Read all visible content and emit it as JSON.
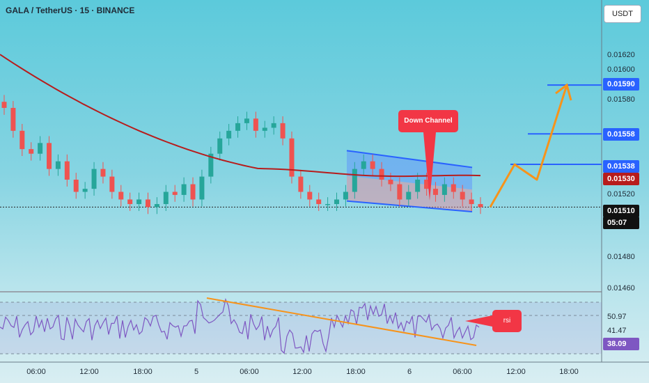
{
  "header": {
    "title": "GALA / TetherUS · 15 · BINANCE"
  },
  "price_axis": {
    "currency": "USDT",
    "ticks": [
      "0.01620",
      "0.01600",
      "0.01580",
      "0.01520",
      "0.01480",
      "0.01460"
    ],
    "tags": [
      {
        "label": "0.01590",
        "style": "blue"
      },
      {
        "label": "0.01558",
        "style": "blue"
      },
      {
        "label": "0.01538",
        "style": "blue"
      },
      {
        "label": "0.01530",
        "style": "red"
      },
      {
        "label": "0.01510",
        "style": "black"
      },
      {
        "label": "05:07",
        "style": "black"
      }
    ]
  },
  "rsi_axis": {
    "values": [
      "50.97",
      "41.47",
      "38.09"
    ]
  },
  "annotations": {
    "down_channel": "Down Channel",
    "rsi": "rsi"
  },
  "time_axis": [
    "06:00",
    "12:00",
    "18:00",
    "5",
    "06:00",
    "12:00",
    "18:00",
    "6",
    "06:00",
    "12:00",
    "18:00"
  ],
  "colors": {
    "up": "#26a69a",
    "down": "#ef5350",
    "ma": "#b71c1c",
    "channel": "#2962ff",
    "projection": "#f7931a",
    "rsi": "#7e57c2"
  },
  "chart_data": {
    "type": "candlestick",
    "symbol": "GALA / TetherUS",
    "interval": "15",
    "exchange": "BINANCE",
    "ylim": [
      0.01455,
      0.01632
    ],
    "close_series": [
      0.01575,
      0.0156,
      0.01548,
      0.01545,
      0.01552,
      0.01535,
      0.0154,
      0.01528,
      0.0152,
      0.01522,
      0.01535,
      0.0153,
      0.0152,
      0.01515,
      0.01512,
      0.01515,
      0.0151,
      0.01512,
      0.0152,
      0.01518,
      0.01525,
      0.01515,
      0.0153,
      0.01545,
      0.01555,
      0.0156,
      0.01565,
      0.01568,
      0.0156,
      0.01562,
      0.01565,
      0.01555,
      0.0153,
      0.0152,
      0.01515,
      0.01512,
      0.01512,
      0.01515,
      0.0152,
      0.01535,
      0.0154,
      0.01535,
      0.01528,
      0.01525,
      0.01515,
      0.0152,
      0.01528,
      0.01522,
      0.01518,
      0.01525,
      0.0152,
      0.01515,
      0.01512,
      0.0151
    ],
    "moving_average_start": 0.0161,
    "moving_average_end": 0.0153,
    "down_channel": {
      "upper": [
        0.01547,
        0.01536
      ],
      "lower": [
        0.01514,
        0.01507
      ]
    },
    "targets": [
      0.01538,
      0.01558,
      0.0159
    ],
    "projection": [
      0.0151,
      0.01538,
      0.01528,
      0.0159
    ],
    "rsi": {
      "ticks": [
        50.97,
        41.47,
        38.09
      ],
      "current": 38.09
    }
  }
}
